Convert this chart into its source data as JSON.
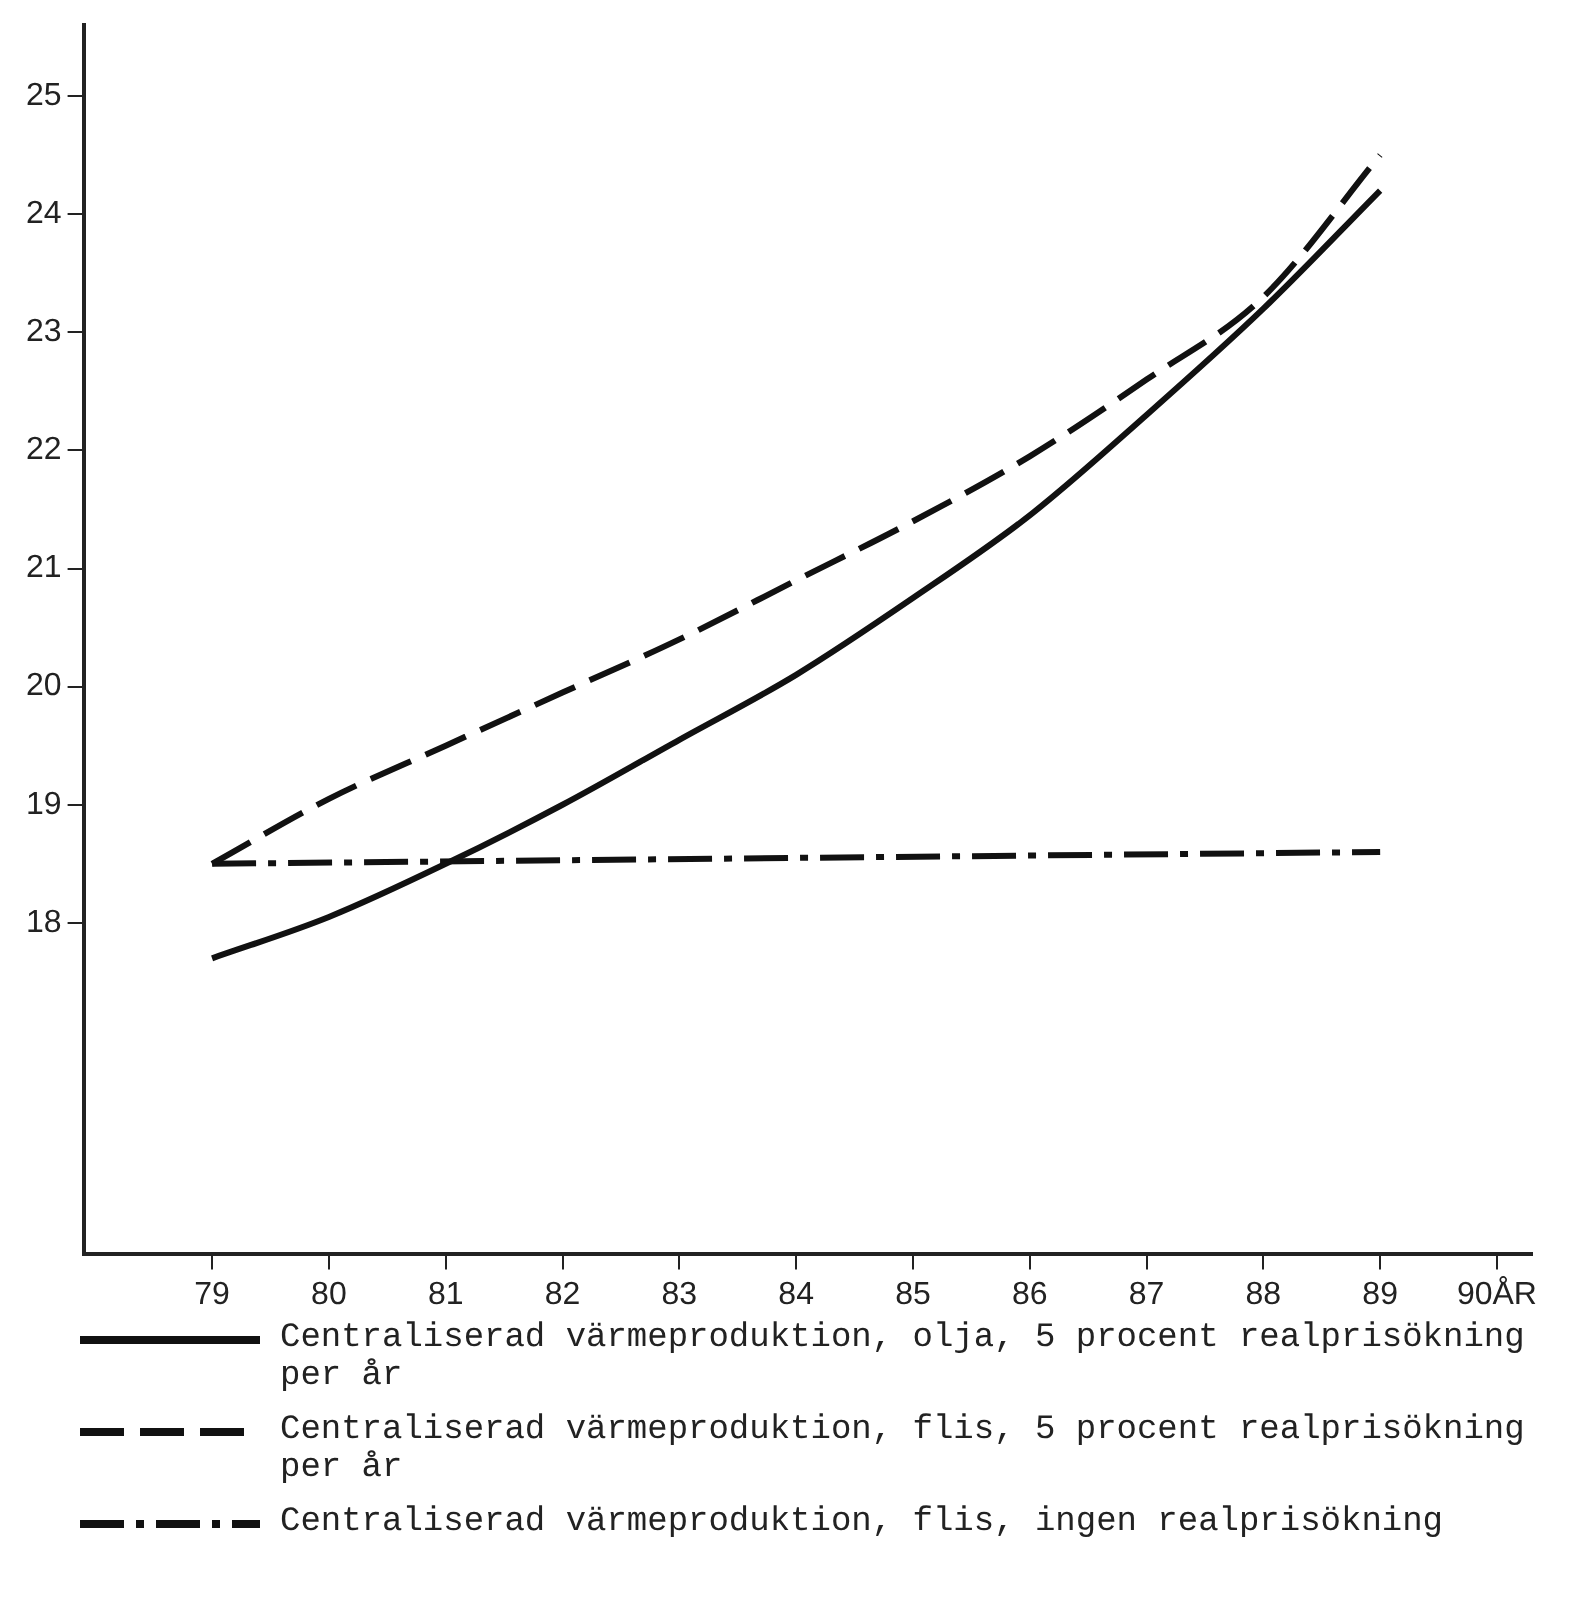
{
  "chart_data": {
    "type": "line",
    "x": [
      79,
      80,
      81,
      82,
      83,
      84,
      85,
      86,
      87,
      88,
      89
    ],
    "series": [
      {
        "name": "Centraliserad värmeproduktion, olja, 5 procent realprisökning per år",
        "color": "#111111",
        "line_style": "solid",
        "values": [
          17.7,
          18.05,
          18.5,
          19.0,
          19.55,
          20.1,
          20.75,
          21.45,
          22.3,
          23.2,
          24.2
        ]
      },
      {
        "name": "Centraliserad värmeproduktion, flis, 5 procent realprisökning per år",
        "color": "#111111",
        "line_style": "dashed",
        "values": [
          18.5,
          19.05,
          19.5,
          19.95,
          20.4,
          20.9,
          21.4,
          21.95,
          22.6,
          23.3,
          24.5
        ]
      },
      {
        "name": "Centraliserad värmeproduktion, flis, ingen realprisökning",
        "color": "#111111",
        "line_style": "dashdot",
        "x": [
          79,
          89
        ],
        "values": [
          18.5,
          18.6
        ]
      }
    ],
    "xlim": [
      77.9,
      90.3
    ],
    "xticks": [
      79,
      80,
      81,
      82,
      83,
      84,
      85,
      86,
      87,
      88,
      89,
      {
        "value": 90,
        "label": "90ÅR"
      }
    ],
    "ylim": [
      15.2,
      25.6
    ],
    "yticks": [
      18,
      19,
      20,
      21,
      22,
      23,
      24,
      25
    ],
    "grid": false,
    "legend": "bottom",
    "marker": "none"
  }
}
